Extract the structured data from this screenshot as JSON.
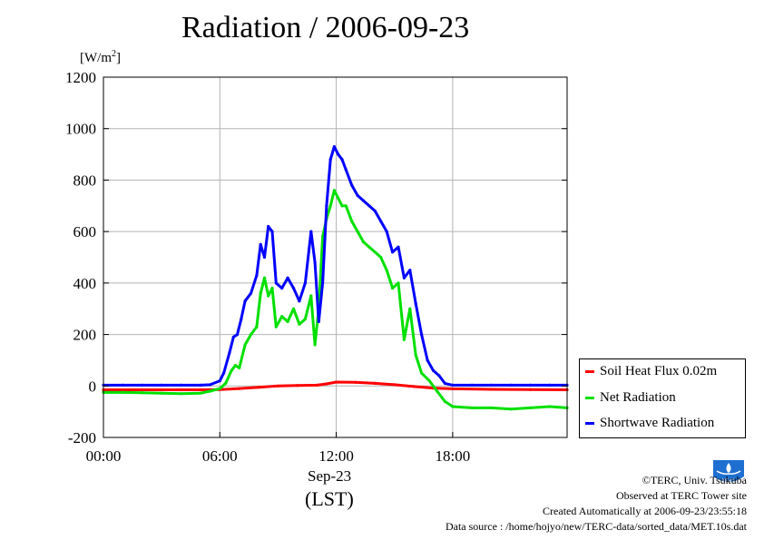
{
  "title": "Radiation / 2006-09-23",
  "units_label": "[W/m",
  "units_sup": "2",
  "units_close": "]",
  "x_sublabel_date": "Sep-23",
  "x_sublabel_tz": "(LST)",
  "legend": {
    "soil": "Soil Heat Flux 0.02m",
    "net": "Net Radiation",
    "short": "Shortwave Radiation"
  },
  "footer": {
    "copyright": "©TERC, Univ. Tsukuba",
    "observed": "Observed at TERC Tower site",
    "created": "Created Automatically at 2006-09-23/23:55:18",
    "source": "Data source : /home/hojyo/new/TERC-data/sorted_data/MET.10s.dat"
  },
  "logo_text": "TERC",
  "colors": {
    "soil": "#ff0000",
    "net": "#00e000",
    "short": "#0000ff",
    "grid": "#b4b4b4",
    "logo": "#1e6fd0"
  },
  "chart_data": {
    "type": "line",
    "title": "Radiation / 2006-09-23",
    "ylabel": "[W/m2]",
    "xlabel": "Sep-23 (LST)",
    "xlim": [
      0,
      23.9
    ],
    "ylim": [
      -200,
      1200
    ],
    "yticks": [
      -200,
      0,
      200,
      400,
      600,
      800,
      1000,
      1200
    ],
    "xticks": [
      0,
      6,
      12,
      18
    ],
    "xtick_labels": [
      "00:00",
      "06:00",
      "12:00",
      "18:00"
    ],
    "grid": true,
    "legend_position": "lower-right outside",
    "series": [
      {
        "name": "Soil Heat Flux 0.02m",
        "color_key": "soil",
        "x": [
          0,
          2,
          4,
          5,
          6,
          7,
          8,
          9,
          10,
          11,
          11.5,
          12,
          13,
          14,
          15,
          16,
          17,
          18,
          20,
          22,
          23.9
        ],
        "values": [
          -15,
          -15,
          -15,
          -15,
          -14,
          -10,
          -5,
          0,
          2,
          3,
          8,
          15,
          14,
          10,
          5,
          -2,
          -8,
          -11,
          -13,
          -14,
          -15
        ]
      },
      {
        "name": "Net Radiation",
        "color_key": "net",
        "x": [
          0,
          1,
          2,
          3,
          4,
          5,
          5.5,
          6,
          6.3,
          6.6,
          6.8,
          7,
          7.3,
          7.6,
          7.9,
          8.1,
          8.3,
          8.5,
          8.7,
          8.9,
          9.2,
          9.5,
          9.8,
          10.1,
          10.4,
          10.7,
          10.9,
          11.1,
          11.3,
          11.5,
          11.7,
          11.9,
          12.1,
          12.3,
          12.5,
          12.8,
          13.1,
          13.4,
          13.7,
          14,
          14.3,
          14.6,
          14.9,
          15.2,
          15.5,
          15.8,
          16.1,
          16.4,
          16.8,
          17.2,
          17.6,
          18,
          19,
          20,
          21,
          22,
          23,
          23.9
        ],
        "values": [
          -25,
          -25,
          -26,
          -28,
          -30,
          -28,
          -20,
          -10,
          10,
          60,
          80,
          70,
          160,
          200,
          230,
          360,
          420,
          350,
          380,
          230,
          270,
          250,
          300,
          240,
          260,
          350,
          160,
          300,
          580,
          650,
          700,
          760,
          730,
          700,
          700,
          640,
          600,
          560,
          540,
          520,
          500,
          450,
          380,
          400,
          180,
          300,
          120,
          50,
          20,
          -20,
          -60,
          -80,
          -85,
          -85,
          -90,
          -85,
          -80,
          -85
        ]
      },
      {
        "name": "Shortwave Radiation",
        "color_key": "short",
        "x": [
          0,
          1,
          2,
          3,
          4,
          5,
          5.5,
          6,
          6.2,
          6.5,
          6.7,
          6.9,
          7.1,
          7.3,
          7.6,
          7.9,
          8.1,
          8.3,
          8.5,
          8.7,
          8.9,
          9.2,
          9.5,
          9.8,
          10.1,
          10.4,
          10.7,
          10.9,
          11.1,
          11.3,
          11.5,
          11.7,
          11.9,
          12.1,
          12.3,
          12.5,
          12.8,
          13.1,
          13.4,
          13.7,
          14,
          14.3,
          14.6,
          14.9,
          15.2,
          15.5,
          15.8,
          16.1,
          16.4,
          16.7,
          17,
          17.3,
          17.6,
          18,
          19,
          20,
          21,
          22,
          23,
          23.9
        ],
        "values": [
          3,
          3,
          3,
          3,
          3,
          3,
          5,
          20,
          50,
          130,
          190,
          200,
          260,
          330,
          360,
          430,
          550,
          500,
          620,
          600,
          400,
          380,
          420,
          380,
          330,
          400,
          600,
          480,
          250,
          400,
          700,
          880,
          930,
          900,
          880,
          840,
          780,
          740,
          720,
          700,
          680,
          640,
          600,
          520,
          540,
          420,
          450,
          320,
          200,
          100,
          60,
          40,
          10,
          3,
          3,
          3,
          3,
          3,
          3,
          3
        ]
      }
    ]
  }
}
